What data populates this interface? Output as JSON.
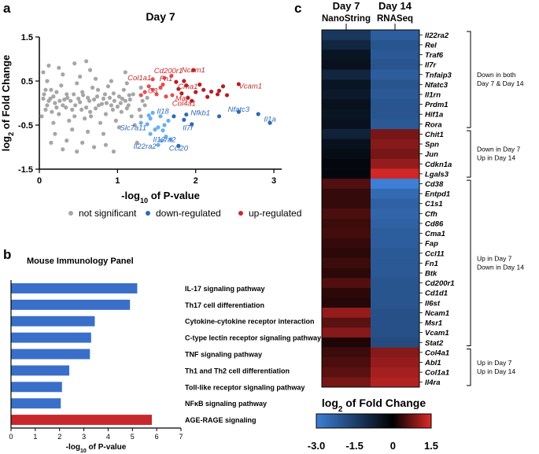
{
  "panels": {
    "a": "a",
    "b": "b",
    "c": "c"
  },
  "chart_data": [
    {
      "type": "scatter",
      "panel": "a",
      "title": "Day 7",
      "xlabel_main": "-log",
      "xlabel_sub": "10",
      "xlabel_rest": " of P-value",
      "ylabel_main": "log",
      "ylabel_sub": "2",
      "ylabel_rest": " of Fold Change",
      "xlim": [
        0,
        3.1
      ],
      "ylim": [
        -1.5,
        1.5
      ],
      "xticks": [
        0,
        1,
        2,
        3
      ],
      "yticks": [
        1.5,
        0.5,
        -0.5,
        -1.5
      ],
      "yticklabels": [
        "1.5",
        "0.5",
        "-0.5",
        "-1.5"
      ],
      "legend": [
        {
          "label": "not significant",
          "color": "#a6a6a6"
        },
        {
          "label": "down-regulated",
          "color": "#2f6ab6"
        },
        {
          "label": "up-regulated",
          "color": "#c8282b"
        }
      ],
      "labels_up": [
        {
          "name": "Ncam1",
          "x": 1.97,
          "y": 0.7
        },
        {
          "name": "Cd200r1",
          "x": 1.65,
          "y": 0.68
        },
        {
          "name": "Col1a1",
          "x": 1.28,
          "y": 0.52
        },
        {
          "name": "Fn1",
          "x": 1.62,
          "y": 0.5
        },
        {
          "name": "Vcam1",
          "x": 2.7,
          "y": 0.33
        },
        {
          "name": "Cma1",
          "x": 1.9,
          "y": 0.32
        },
        {
          "name": "C3",
          "x": 1.45,
          "y": 0.22
        },
        {
          "name": "Maf",
          "x": 1.82,
          "y": 0.05
        },
        {
          "name": "Col4a1",
          "x": 1.85,
          "y": -0.06
        }
      ],
      "labels_down": [
        {
          "name": "Il18",
          "x": 1.58,
          "y": -0.24
        },
        {
          "name": "Nfkb1",
          "x": 2.06,
          "y": -0.28
        },
        {
          "name": "Nfatc3",
          "x": 2.55,
          "y": -0.2
        },
        {
          "name": "Il1a",
          "x": 2.95,
          "y": -0.42
        },
        {
          "name": "Slc7a11",
          "x": 1.2,
          "y": -0.62
        },
        {
          "name": "Il7r",
          "x": 1.9,
          "y": -0.62
        },
        {
          "name": "Il13ra2",
          "x": 1.6,
          "y": -0.88
        },
        {
          "name": "Il22ra2",
          "x": 1.35,
          "y": -1.04
        },
        {
          "name": "Ccl20",
          "x": 1.78,
          "y": -1.08
        }
      ],
      "points_up": [
        [
          1.97,
          0.75
        ],
        [
          1.69,
          0.62
        ],
        [
          1.45,
          0.54
        ],
        [
          1.6,
          0.57
        ],
        [
          2.55,
          0.43
        ],
        [
          1.88,
          0.4
        ],
        [
          1.55,
          0.35
        ],
        [
          1.78,
          0.32
        ],
        [
          1.82,
          0.22
        ],
        [
          1.7,
          0.18
        ],
        [
          1.4,
          0.38
        ],
        [
          1.5,
          0.2
        ],
        [
          1.62,
          0.15
        ],
        [
          1.9,
          0.12
        ],
        [
          2.0,
          0.25
        ],
        [
          2.1,
          0.3
        ],
        [
          2.2,
          0.26
        ],
        [
          2.3,
          0.28
        ],
        [
          2.4,
          0.18
        ],
        [
          2.05,
          0.42
        ],
        [
          1.75,
          0.48
        ],
        [
          1.3,
          0.18
        ],
        [
          1.35,
          0.25
        ],
        [
          1.95,
          0.05
        ],
        [
          2.15,
          0.14
        ],
        [
          1.58,
          0.42
        ],
        [
          2.28,
          0.2
        ],
        [
          1.45,
          0.3
        ],
        [
          1.85,
          0.5
        ],
        [
          2.35,
          0.38
        ]
      ],
      "points_down": [
        [
          1.45,
          -0.22
        ],
        [
          1.88,
          -0.26
        ],
        [
          2.55,
          -0.2
        ],
        [
          2.95,
          -0.45
        ],
        [
          1.52,
          -0.55
        ],
        [
          1.95,
          -0.48
        ],
        [
          1.62,
          -0.76
        ],
        [
          1.52,
          -0.95
        ],
        [
          1.78,
          -0.97
        ],
        [
          1.55,
          -0.3
        ],
        [
          1.65,
          -0.4
        ],
        [
          1.38,
          -0.48
        ],
        [
          1.72,
          -0.3
        ],
        [
          1.48,
          -0.6
        ],
        [
          1.6,
          -0.5
        ],
        [
          2.3,
          -0.3
        ],
        [
          2.8,
          -0.25
        ],
        [
          1.42,
          -0.35
        ],
        [
          1.58,
          -0.62
        ],
        [
          1.42,
          -0.7
        ],
        [
          1.68,
          -0.82
        ],
        [
          1.3,
          -0.45
        ],
        [
          1.4,
          -0.28
        ],
        [
          1.56,
          -0.85
        ],
        [
          1.85,
          -0.38
        ]
      ],
      "points_ns": [
        [
          0.05,
          0.1
        ],
        [
          0.12,
          0.05
        ],
        [
          0.2,
          0.0
        ],
        [
          0.3,
          -0.05
        ],
        [
          0.4,
          0.05
        ],
        [
          0.5,
          0.1
        ],
        [
          0.6,
          -0.1
        ],
        [
          0.7,
          0.08
        ],
        [
          0.8,
          -0.02
        ],
        [
          0.9,
          0.12
        ],
        [
          1.0,
          -0.08
        ],
        [
          1.1,
          0.05
        ],
        [
          0.08,
          -0.15
        ],
        [
          0.15,
          0.3
        ],
        [
          0.25,
          -0.25
        ],
        [
          0.35,
          0.2
        ],
        [
          0.45,
          -0.3
        ],
        [
          0.55,
          0.25
        ],
        [
          0.65,
          -0.2
        ],
        [
          0.75,
          0.3
        ],
        [
          0.85,
          -0.25
        ],
        [
          0.95,
          0.22
        ],
        [
          1.05,
          -0.2
        ],
        [
          1.15,
          0.18
        ],
        [
          0.1,
          0.5
        ],
        [
          0.18,
          -0.45
        ],
        [
          0.28,
          0.4
        ],
        [
          0.38,
          -0.4
        ],
        [
          0.48,
          0.45
        ],
        [
          0.58,
          -0.35
        ],
        [
          0.68,
          0.35
        ],
        [
          0.78,
          -0.45
        ],
        [
          0.88,
          0.38
        ],
        [
          0.98,
          -0.4
        ],
        [
          1.08,
          0.3
        ],
        [
          1.18,
          -0.3
        ],
        [
          0.12,
          0.85
        ],
        [
          0.05,
          0.7
        ],
        [
          0.2,
          -0.7
        ],
        [
          0.3,
          0.65
        ],
        [
          0.42,
          -0.6
        ],
        [
          0.52,
          0.6
        ],
        [
          0.62,
          -0.65
        ],
        [
          0.72,
          0.55
        ],
        [
          0.82,
          -0.7
        ],
        [
          0.92,
          0.5
        ],
        [
          1.02,
          -0.55
        ],
        [
          1.12,
          0.45
        ],
        [
          1.22,
          -0.5
        ],
        [
          0.15,
          -0.9
        ],
        [
          0.25,
          0.8
        ],
        [
          0.35,
          -0.85
        ],
        [
          0.55,
          -0.9
        ],
        [
          0.65,
          0.75
        ],
        [
          0.85,
          -0.95
        ],
        [
          1.25,
          -0.9
        ],
        [
          0.08,
          0.3
        ],
        [
          0.18,
          0.15
        ],
        [
          0.22,
          -0.1
        ],
        [
          0.32,
          0.08
        ],
        [
          0.42,
          -0.15
        ],
        [
          0.52,
          0.02
        ],
        [
          0.62,
          0.12
        ],
        [
          0.72,
          -0.12
        ],
        [
          0.82,
          0.1
        ],
        [
          0.92,
          -0.05
        ],
        [
          1.02,
          0.15
        ],
        [
          1.12,
          -0.12
        ],
        [
          1.2,
          0.2
        ],
        [
          1.28,
          -0.15
        ],
        [
          0.03,
          -0.3
        ],
        [
          0.06,
          0.2
        ],
        [
          0.1,
          -0.05
        ],
        [
          0.14,
          0.1
        ],
        [
          0.16,
          -0.2
        ],
        [
          0.22,
          0.25
        ],
        [
          0.26,
          0.05
        ],
        [
          0.34,
          -0.1
        ],
        [
          0.36,
          0.12
        ],
        [
          0.44,
          0.2
        ],
        [
          0.46,
          -0.05
        ],
        [
          0.54,
          -0.15
        ],
        [
          0.56,
          0.18
        ],
        [
          0.64,
          0.05
        ],
        [
          0.66,
          -0.3
        ],
        [
          0.74,
          0.15
        ],
        [
          0.76,
          -0.05
        ],
        [
          0.84,
          0.2
        ],
        [
          0.86,
          0.0
        ],
        [
          0.94,
          -0.15
        ],
        [
          0.96,
          0.05
        ],
        [
          1.04,
          0.0
        ],
        [
          1.06,
          0.1
        ],
        [
          1.14,
          -0.05
        ],
        [
          1.16,
          0.08
        ],
        [
          0.3,
          -1.05
        ],
        [
          0.45,
          0.9
        ],
        [
          0.7,
          -1.0
        ],
        [
          1.1,
          0.7
        ],
        [
          1.3,
          0.35
        ],
        [
          1.3,
          -0.3
        ],
        [
          1.32,
          0.05
        ],
        [
          0.6,
          0.95
        ],
        [
          0.95,
          -1.1
        ],
        [
          1.35,
          -0.05
        ],
        [
          1.38,
          0.12
        ],
        [
          0.48,
          -1.1
        ]
      ]
    },
    {
      "type": "bar",
      "panel": "b",
      "orientation": "horizontal",
      "title": "Mouse Immunology Panel",
      "xlabel_main": "-log",
      "xlabel_sub": "10",
      "xlabel_rest": " of P-value",
      "xlim": [
        0,
        7
      ],
      "xticks": [
        0,
        1,
        2,
        3,
        4,
        5,
        6,
        7
      ],
      "categories": [
        "IL-17 signaling pathway",
        "Th17 cell differentiation",
        "Cytokine-cytokine receptor interaction",
        "C-type lectin receptor signaling pathway",
        "TNF signaling pathway",
        "Th1 and Th2 cell differentiation",
        "Toll-like receptor signaling pathway",
        "NFκB signaling pathway",
        "AGE-RAGE signaling"
      ],
      "values": [
        5.2,
        4.9,
        3.45,
        3.3,
        3.25,
        2.4,
        2.1,
        2.05,
        5.8
      ],
      "colors": [
        "#3a6fc9",
        "#3a6fc9",
        "#3a6fc9",
        "#3a6fc9",
        "#3a6fc9",
        "#3a6fc9",
        "#3a6fc9",
        "#3a6fc9",
        "#c8282b"
      ]
    },
    {
      "type": "heatmap",
      "panel": "c",
      "columns": [
        {
          "day": "Day 7",
          "method": "NanoString"
        },
        {
          "day": "Day 14",
          "method": "RNASeq"
        }
      ],
      "genes": [
        "Il22ra2",
        "Rel",
        "Traf6",
        "Il7r",
        "Tnfaip3",
        "Nfatc3",
        "Il1rn",
        "Prdm1",
        "Hif1a",
        "Rora",
        "Chit1",
        "Spn",
        "Jun",
        "Cdkn1a",
        "Lgals3",
        "Cd38",
        "Entpd1",
        "C1s1",
        "Cfh",
        "Cd86",
        "Cma1",
        "Fap",
        "Ccl11",
        "Fn1",
        "Btk",
        "Cd200r1",
        "Cd1d1",
        "Il6st",
        "Ncam1",
        "Msr1",
        "Vcam1",
        "Stat2",
        "Col4a1",
        "Abl1",
        "Col1a1",
        "Il4ra"
      ],
      "values_day7": [
        -1.3,
        -0.9,
        -0.5,
        -0.4,
        -0.9,
        -0.5,
        -0.6,
        -0.4,
        -0.5,
        -0.4,
        -0.8,
        -0.4,
        -0.3,
        -0.2,
        -0.2,
        0.55,
        0.35,
        0.35,
        0.5,
        0.4,
        0.45,
        0.35,
        0.3,
        0.4,
        0.3,
        0.55,
        0.3,
        0.25,
        1.0,
        0.6,
        0.9,
        0.2,
        0.4,
        0.5,
        0.6,
        0.8
      ],
      "values_day14": [
        -2.2,
        -2.0,
        -2.1,
        -2.0,
        -2.2,
        -2.0,
        -2.1,
        -2.0,
        -2.0,
        -2.1,
        0.8,
        0.9,
        0.8,
        1.0,
        1.4,
        -3.0,
        -2.5,
        -2.3,
        -2.4,
        -2.3,
        -2.2,
        -2.2,
        -2.1,
        -2.1,
        -2.1,
        -2.0,
        -2.0,
        -2.0,
        -1.9,
        -1.9,
        -1.9,
        -1.8,
        0.9,
        1.0,
        1.1,
        1.2
      ],
      "groups": [
        {
          "label_lines": [
            "Down in both",
            "Day 7 & Day 14"
          ],
          "start": 0,
          "end": 9
        },
        {
          "label_lines": [
            "Down in Day 7",
            "Up in Day 14"
          ],
          "start": 10,
          "end": 14
        },
        {
          "label_lines": [
            "Up in Day 7",
            "Down in Day 14"
          ],
          "start": 15,
          "end": 31
        },
        {
          "label_lines": [
            "Up in Day 7",
            "Up in Day 14"
          ],
          "start": 32,
          "end": 35
        }
      ],
      "colorbar": {
        "title_main": "log",
        "title_sub": "2",
        "title_rest": " of Fold Change",
        "min": -3.0,
        "max": 1.5,
        "ticks": [
          "-3.0",
          "-1.5",
          "0",
          "1.5"
        ],
        "neg_color": "#3d7fd6",
        "zero_color": "#000000",
        "pos_color": "#e02a2a"
      }
    }
  ]
}
